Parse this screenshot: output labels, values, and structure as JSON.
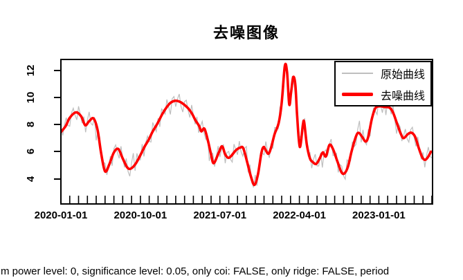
{
  "title": "去噪图像",
  "caption": "m power level: 0, significance level: 0.05, only coi: FALSE, only ridge: FALSE, period",
  "legend": {
    "items": [
      {
        "label": "原始曲线",
        "color": "#bebebe",
        "sample_weight": "thin"
      },
      {
        "label": "去噪曲线",
        "color": "#ff0000",
        "sample_weight": "thick"
      }
    ]
  },
  "chart_data": {
    "type": "line",
    "title": "去噪图像",
    "grid": false,
    "legend_position": "top-right",
    "x_axis": {
      "start_date": "2020-01-01",
      "unit": "months since 2020-01-01",
      "tick_interval_months": 1,
      "range_months": [
        0,
        42
      ],
      "labels": [
        {
          "month": 0,
          "label": "2020-01-01"
        },
        {
          "month": 9,
          "label": "2020-10-01"
        },
        {
          "month": 18,
          "label": "2021-07-01"
        },
        {
          "month": 27,
          "label": "2022-04-01"
        },
        {
          "month": 36,
          "label": "2023-01-01"
        }
      ]
    },
    "y_axis": {
      "ticks": [
        4,
        6,
        8,
        10,
        12
      ],
      "range": [
        2.2,
        12.8
      ]
    },
    "series": [
      {
        "name": "原始曲线",
        "role": "original-noisy",
        "color": "#bebebe",
        "construction": "denoised series sampled every 0.2 month plus cycled noise_offsets"
      },
      {
        "name": "去噪曲线",
        "role": "denoised",
        "color": "#ff0000",
        "month": [
          0,
          0.55,
          1.0,
          1.7,
          2.3,
          2.75,
          3.2,
          3.7,
          4.15,
          4.55,
          5.0,
          5.5,
          6.0,
          6.5,
          7.0,
          7.5,
          7.9,
          8.45,
          9.0,
          9.5,
          9.95,
          10.4,
          10.95,
          11.5,
          12.0,
          12.4,
          12.9,
          13.4,
          13.9,
          14.4,
          14.85,
          15.25,
          15.65,
          15.9,
          16.25,
          16.65,
          17.0,
          17.3,
          17.85,
          18.25,
          18.6,
          18.95,
          19.3,
          19.8,
          20.3,
          20.65,
          21.1,
          21.5,
          21.9,
          22.3,
          22.7,
          22.95,
          23.2,
          23.5,
          23.8,
          24.2,
          24.65,
          25.0,
          25.35,
          25.6,
          25.85,
          26.05,
          26.3,
          26.55,
          26.75,
          27.05,
          27.4,
          27.55,
          27.85,
          28.2,
          28.5,
          28.9,
          29.3,
          29.65,
          30.0,
          30.4,
          30.8,
          31.3,
          31.75,
          32.1,
          32.5,
          32.9,
          33.4,
          33.7,
          34.1,
          34.5,
          34.8,
          35.2,
          35.6,
          36.1,
          36.6,
          37.2,
          37.6,
          38.1,
          38.5,
          38.8,
          39.3,
          39.7,
          40.1,
          40.5,
          40.9,
          41.2,
          41.5,
          41.9
        ],
        "value": [
          7.45,
          7.9,
          8.5,
          8.9,
          8.6,
          7.95,
          8.25,
          8.45,
          7.6,
          5.9,
          4.55,
          5.1,
          5.95,
          6.2,
          5.5,
          4.85,
          4.75,
          5.1,
          5.75,
          6.4,
          6.9,
          7.5,
          8.1,
          8.8,
          9.3,
          9.6,
          9.75,
          9.7,
          9.5,
          9.2,
          8.8,
          8.3,
          7.9,
          7.5,
          7.7,
          6.8,
          5.8,
          5.15,
          5.9,
          6.4,
          5.8,
          5.55,
          5.7,
          6.1,
          6.3,
          6.25,
          5.2,
          4.2,
          3.55,
          4.3,
          5.9,
          6.35,
          6.1,
          5.85,
          6.3,
          7.3,
          8.1,
          9.6,
          12.3,
          11.9,
          9.5,
          10.3,
          11.5,
          10.9,
          8.6,
          6.35,
          8.0,
          8.15,
          6.5,
          5.5,
          5.25,
          5.1,
          5.5,
          5.95,
          5.65,
          6.5,
          6.2,
          5.3,
          4.5,
          4.4,
          4.9,
          6.0,
          7.1,
          7.4,
          7.1,
          6.75,
          7.1,
          8.4,
          9.2,
          9.35,
          9.3,
          9.25,
          8.9,
          8.0,
          7.3,
          7.0,
          7.3,
          7.4,
          7.1,
          6.3,
          5.6,
          5.4,
          5.55,
          6.0
        ]
      }
    ],
    "noise_offsets": [
      0.35,
      -0.42,
      0.18,
      0.55,
      -0.3,
      -0.62,
      0.25,
      0.48,
      -0.15,
      -0.5,
      0.6,
      0.1,
      -0.35,
      0.42,
      -0.55,
      0.22,
      0.68,
      -0.25,
      -0.45,
      0.3,
      -1.05,
      0.15,
      0.5,
      -0.38,
      0.08,
      0.58,
      -0.48,
      -0.12,
      0.4,
      -0.65,
      0.28,
      0.45,
      -0.22,
      -0.55,
      0.62,
      0.05,
      -0.4,
      0.52,
      -0.28,
      -0.58,
      0.35,
      0.95,
      -0.48,
      0.6,
      -0.1,
      -0.35,
      0.55,
      -0.62,
      0.15,
      0.42,
      -0.2,
      -0.52,
      0.65,
      0.08,
      -0.45,
      0.3,
      -0.58,
      0.48,
      0.12,
      -0.32,
      0.55,
      -0.15,
      -0.85,
      0.25
    ]
  }
}
